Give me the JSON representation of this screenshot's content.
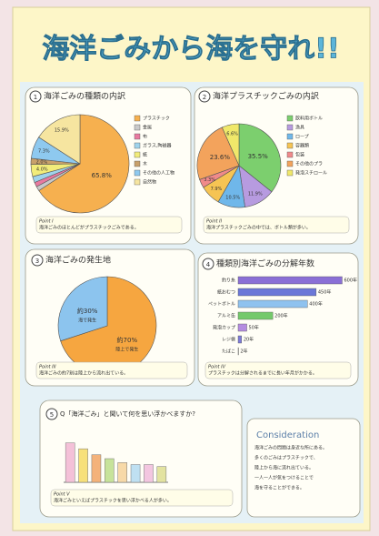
{
  "poster": {
    "title": "海洋ごみから海を守れ!!",
    "consideration_title": "Consideration",
    "consideration_text": [
      "海洋ごみの問題は身近な所にある。",
      "多くのごみはプラスチックで、",
      "陸上から海に流れ出ている。",
      "一人一人が気をつけることで",
      "海を守ることができる。"
    ]
  },
  "chart_data": [
    {
      "type": "pie",
      "number": "1",
      "title": "海洋ごみの種類の内訳",
      "categories": [
        "プラスチック",
        "金属",
        "布",
        "ガラス,陶磁器",
        "紙",
        "木",
        "その他の人工物",
        "自然物"
      ],
      "values": [
        65.8,
        1.5,
        1.5,
        2.0,
        4.0,
        2.0,
        7.3,
        15.9
      ],
      "value_labels": [
        "65.8%",
        null,
        null,
        null,
        "4.0%",
        "2.0%",
        "7.3%",
        "15.9%"
      ],
      "colors": [
        "#f6b04f",
        "#c9c9c9",
        "#e87aa0",
        "#9fd3ec",
        "#f2ec7a",
        "#c8a06a",
        "#8ec9ef",
        "#f6e5a0"
      ],
      "point_title": "Point I",
      "point_text": "海洋ごみのほとんどがプラスチックごみである。"
    },
    {
      "type": "pie",
      "number": "2",
      "title": "海洋プラスチックごみの内訳",
      "categories": [
        "飲料用ボトル",
        "漁具",
        "ロープ",
        "容器類",
        "包装",
        "その他のプラ",
        "発泡スチロール"
      ],
      "values": [
        35.5,
        11.9,
        10.5,
        7.9,
        3.3,
        23.6,
        6.6
      ],
      "value_labels": [
        "35.5%",
        "11.9%",
        "10.5%",
        "7.9%",
        "3.3%",
        "23.6%",
        "6.6%"
      ],
      "colors": [
        "#7ccf6e",
        "#b79be0",
        "#6fb7ea",
        "#f6c453",
        "#f08a8a",
        "#f3a35c",
        "#f0e86a"
      ],
      "point_title": "Point II",
      "point_text": "海洋プラスチックごみの中では、ボトル類が多い。"
    },
    {
      "type": "pie",
      "number": "3",
      "title": "海洋ごみの発生地",
      "categories": [
        "陸上で発生",
        "海で発生"
      ],
      "values": [
        70,
        30
      ],
      "value_labels": [
        "約70%",
        "約30%"
      ],
      "colors": [
        "#f6a640",
        "#8cc4ee"
      ],
      "point_title": "Point III",
      "point_text": "海洋ごみの約7割は陸上から流れ出ている。"
    },
    {
      "type": "hbar",
      "number": "4",
      "title": "種類別海洋ごみの分解年数",
      "categories": [
        "釣り糸",
        "紙おむつ",
        "ペットボトル",
        "アルミ缶",
        "発泡カップ",
        "レジ袋",
        "たばこ"
      ],
      "values": [
        600,
        450,
        400,
        200,
        50,
        20,
        2
      ],
      "value_labels": [
        "600年",
        "450年",
        "400年",
        "200年",
        "50年",
        "20年",
        "2年"
      ],
      "colors": [
        "#8a6fd6",
        "#6b77d8",
        "#8fc2ef",
        "#74c96b",
        "#b48ce0",
        "#7d7bd9",
        "#9ad07a"
      ],
      "xlim": [
        0,
        650
      ],
      "point_title": "Point IV",
      "point_text": "プラスチックは分解されるまでに長い年月がかかる。"
    },
    {
      "type": "bar",
      "number": "5",
      "title": "Q「海洋ごみ」と聞いて何を思い浮かべますか?",
      "values": [
        20,
        17,
        14,
        12,
        10,
        9,
        9,
        8
      ],
      "colors": [
        "#f4c1d8",
        "#f7e07a",
        "#f4b27a",
        "#c7e39a",
        "#f7d9a8",
        "#bfe0f2",
        "#f3c6e0",
        "#e3e3a0"
      ],
      "ylim": [
        0,
        24
      ],
      "point_title": "Point V",
      "point_text": "海洋ごみといえばプラスチックを思い浮かべる人が多い。"
    }
  ]
}
